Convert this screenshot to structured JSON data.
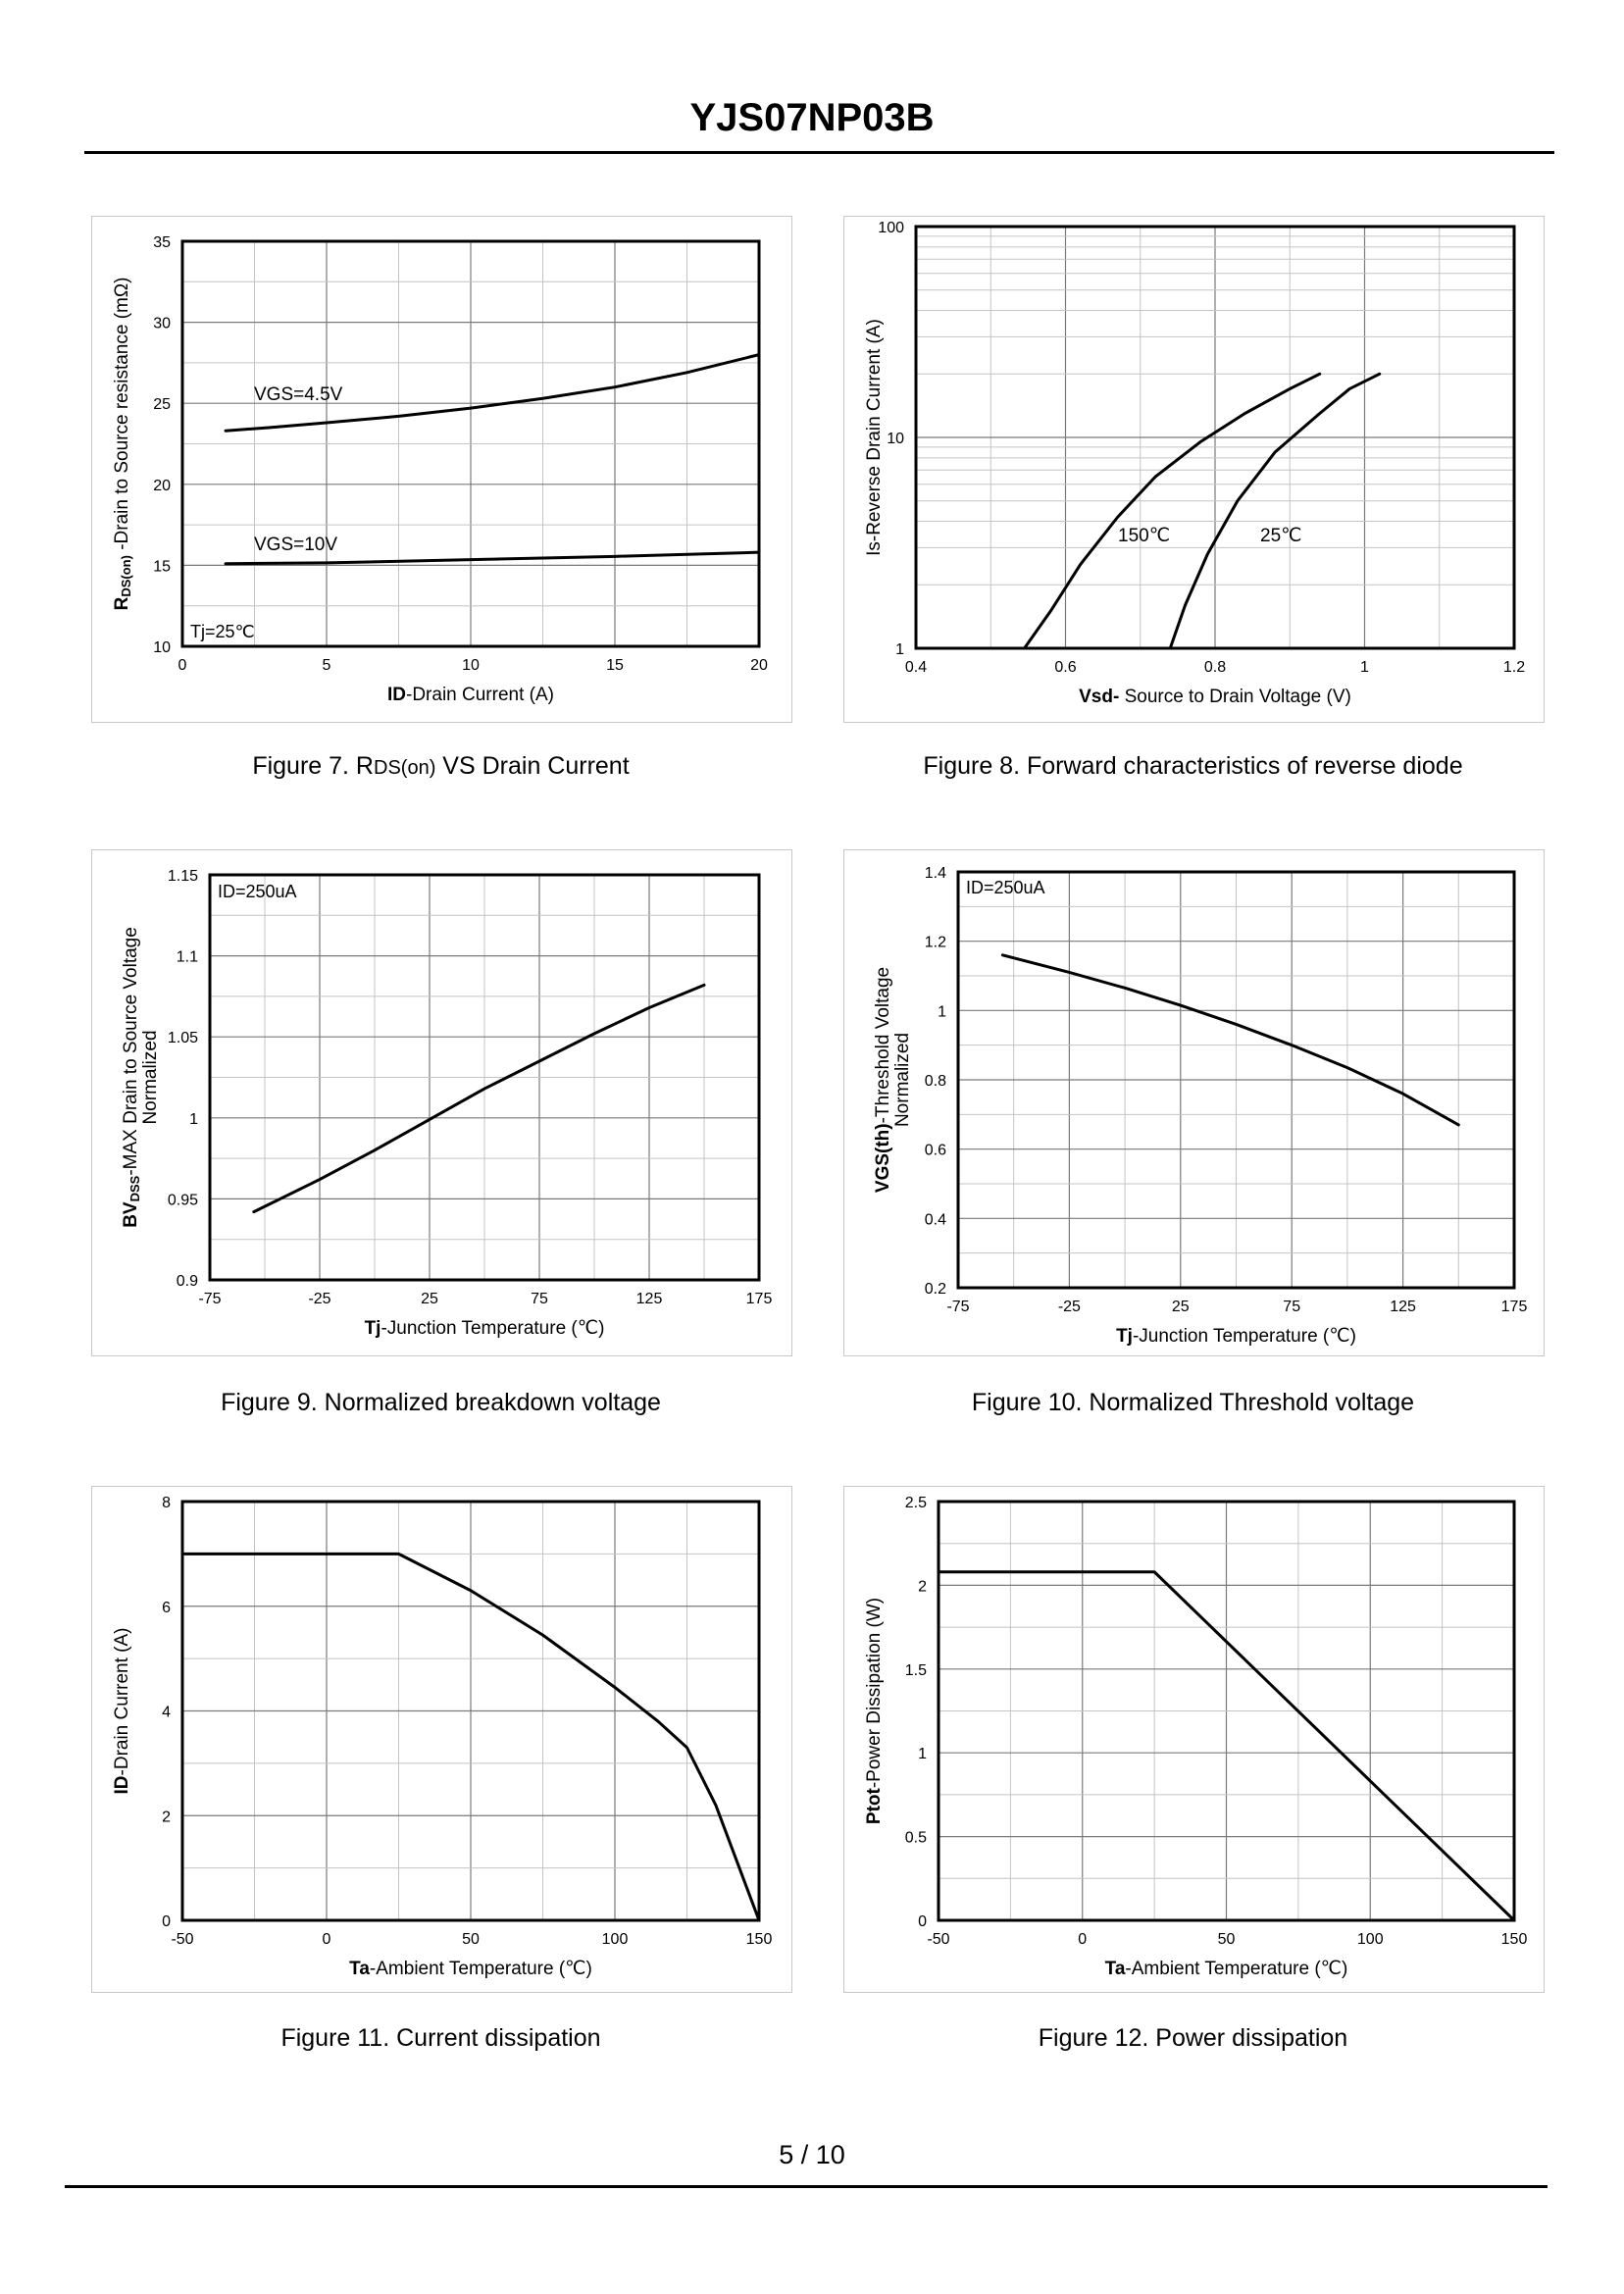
{
  "header": {
    "title": "YJS07NP03B"
  },
  "footer": {
    "page_number": "5 / 10"
  },
  "figures": [
    {
      "caption_prefix": "Figure 7.  R",
      "caption_sub": "DS(on)",
      "caption_suffix": " VS Drain Current"
    },
    {
      "caption": "Figure 8.  Forward characteristics of reverse diode"
    },
    {
      "caption": "Figure 9.  Normalized breakdown voltage"
    },
    {
      "caption": "Figure 10.  Normalized Threshold voltage"
    },
    {
      "caption": "Figure 11.  Current dissipation"
    },
    {
      "caption": "Figure 12.  Power dissipation"
    }
  ],
  "chart_data": [
    {
      "type": "line",
      "title": "RDS(on) VS Drain Current",
      "xlabel": {
        "bold": "ID",
        "rest": "-Drain Current (A)"
      },
      "ylabel": {
        "prefix": "R",
        "sub": "DS(on)",
        "rest": " -Drain to Source resistance (mΩ)"
      },
      "xlim": [
        0,
        20
      ],
      "ylim": [
        10,
        35
      ],
      "xticks": [
        0,
        5,
        10,
        15,
        20
      ],
      "yticks": [
        10,
        15,
        20,
        25,
        30,
        35
      ],
      "xtick_labels": [
        "0",
        "5",
        "10",
        "15",
        "20"
      ],
      "ytick_labels": [
        "10",
        "15",
        "20",
        "25",
        "30",
        "35"
      ],
      "annotation": "Tj=25℃",
      "series": [
        {
          "name": "VGS=4.5V",
          "x": [
            1.5,
            3,
            5,
            7.5,
            10,
            12.5,
            15,
            17.5,
            20
          ],
          "y": [
            23.3,
            23.5,
            23.8,
            24.2,
            24.7,
            25.3,
            26.0,
            26.9,
            28.0
          ]
        },
        {
          "name": "VGS=10V",
          "x": [
            1.5,
            5,
            10,
            15,
            20
          ],
          "y": [
            15.1,
            15.15,
            15.35,
            15.55,
            15.8
          ]
        }
      ]
    },
    {
      "type": "line",
      "title": "Forward characteristics of reverse diode",
      "xlabel": {
        "bold": "Vsd-",
        "rest": " Source to Drain Voltage (V)"
      },
      "ylabel": {
        "prefix": "",
        "sub": "",
        "rest": "Is-Reverse  Drain Current (A)"
      },
      "yscale": "log",
      "xlim": [
        0.4,
        1.2
      ],
      "ylim": [
        1,
        100
      ],
      "xticks": [
        0.4,
        0.6,
        0.8,
        1,
        1.2
      ],
      "yticks": [
        1,
        10,
        100
      ],
      "xtick_labels": [
        "0.4",
        "0.6",
        "0.8",
        "1",
        "1.2"
      ],
      "ytick_labels": [
        "1",
        "10",
        "100"
      ],
      "series": [
        {
          "name": "150℃",
          "x": [
            0.545,
            0.58,
            0.62,
            0.67,
            0.72,
            0.78,
            0.84,
            0.9,
            0.94
          ],
          "y": [
            1,
            1.5,
            2.5,
            4.2,
            6.5,
            9.5,
            13,
            17,
            20
          ]
        },
        {
          "name": "25℃",
          "x": [
            0.74,
            0.76,
            0.79,
            0.83,
            0.88,
            0.94,
            0.98,
            1.02
          ],
          "y": [
            1,
            1.6,
            2.8,
            5,
            8.5,
            13,
            17,
            20
          ]
        }
      ]
    },
    {
      "type": "line",
      "title": "Normalized breakdown voltage",
      "xlabel": {
        "bold": "Tj",
        "rest": "-Junction  Temperature (℃)"
      },
      "ylabel": {
        "prefix": "BV",
        "sub": "DSS",
        "rest": "-MAX Drain to Source Voltage"
      },
      "ylabel2": "Normalized",
      "xlim": [
        -75,
        175
      ],
      "ylim": [
        0.9,
        1.15
      ],
      "xticks": [
        -75,
        -25,
        25,
        75,
        125,
        175
      ],
      "yticks": [
        0.9,
        0.95,
        1,
        1.05,
        1.1,
        1.15
      ],
      "xtick_labels": [
        "-75",
        "-25",
        "25",
        "75",
        "125",
        "175"
      ],
      "ytick_labels": [
        "0.9",
        "0.95",
        "1",
        "1.05",
        "1.1",
        "1.15"
      ],
      "annotation": "ID=250uA",
      "series": [
        {
          "name": "BVDSS",
          "x": [
            -55,
            -25,
            0,
            25,
            50,
            75,
            100,
            125,
            150
          ],
          "y": [
            0.942,
            0.962,
            0.98,
            0.999,
            1.018,
            1.035,
            1.052,
            1.068,
            1.082
          ]
        }
      ]
    },
    {
      "type": "line",
      "title": "Normalized Threshold voltage",
      "xlabel": {
        "bold": "Tj",
        "rest": "-Junction  Temperature (℃)"
      },
      "ylabel": {
        "prefix": "VGS(th)",
        "sub": "",
        "rest": "-Threshold  Voltage"
      },
      "ylabel2": "Normalized",
      "xlim": [
        -75,
        175
      ],
      "ylim": [
        0.2,
        1.4
      ],
      "xticks": [
        -75,
        -25,
        25,
        75,
        125,
        175
      ],
      "yticks": [
        0.2,
        0.4,
        0.6,
        0.8,
        1,
        1.2,
        1.4
      ],
      "xtick_labels": [
        "-75",
        "-25",
        "25",
        "75",
        "125",
        "175"
      ],
      "ytick_labels": [
        "0.2",
        "0.4",
        "0.6",
        "0.8",
        "1",
        "1.2",
        "1.4"
      ],
      "annotation": "ID=250uA",
      "series": [
        {
          "name": "VGS(th)",
          "x": [
            -55,
            -25,
            0,
            25,
            50,
            75,
            100,
            125,
            150
          ],
          "y": [
            1.16,
            1.11,
            1.065,
            1.015,
            0.96,
            0.9,
            0.835,
            0.76,
            0.67
          ]
        }
      ]
    },
    {
      "type": "line",
      "title": "Current dissipation",
      "xlabel": {
        "bold": "Ta",
        "rest": "-Ambient Temperature (℃)"
      },
      "ylabel": {
        "prefix": "ID",
        "sub": "",
        "rest": "-Drain Current (A)"
      },
      "xlim": [
        -50,
        150
      ],
      "ylim": [
        0,
        8
      ],
      "xticks": [
        -50,
        0,
        50,
        100,
        150
      ],
      "yticks": [
        0,
        2,
        4,
        6,
        8
      ],
      "xtick_labels": [
        "-50",
        "0",
        "50",
        "100",
        "150"
      ],
      "ytick_labels": [
        "0",
        "2",
        "4",
        "6",
        "8"
      ],
      "series": [
        {
          "name": "ID",
          "x": [
            -50,
            25,
            50,
            75,
            100,
            115,
            125,
            135,
            150
          ],
          "y": [
            7,
            7,
            6.3,
            5.45,
            4.45,
            3.8,
            3.3,
            2.2,
            0
          ]
        }
      ]
    },
    {
      "type": "line",
      "title": "Power dissipation",
      "xlabel": {
        "bold": "Ta",
        "rest": "-Ambient Temperature (℃)"
      },
      "ylabel": {
        "prefix": "Ptot",
        "sub": "",
        "rest": "-Power Dissipation (W)"
      },
      "xlim": [
        -50,
        150
      ],
      "ylim": [
        0,
        2.5
      ],
      "xticks": [
        -50,
        0,
        50,
        100,
        150
      ],
      "yticks": [
        0,
        0.5,
        1,
        1.5,
        2,
        2.5
      ],
      "xtick_labels": [
        "-50",
        "0",
        "50",
        "100",
        "150"
      ],
      "ytick_labels": [
        "0",
        "0.5",
        "1",
        "1.5",
        "2",
        "2.5"
      ],
      "series": [
        {
          "name": "Ptot",
          "x": [
            -50,
            25,
            150
          ],
          "y": [
            2.08,
            2.08,
            0
          ]
        }
      ]
    }
  ]
}
